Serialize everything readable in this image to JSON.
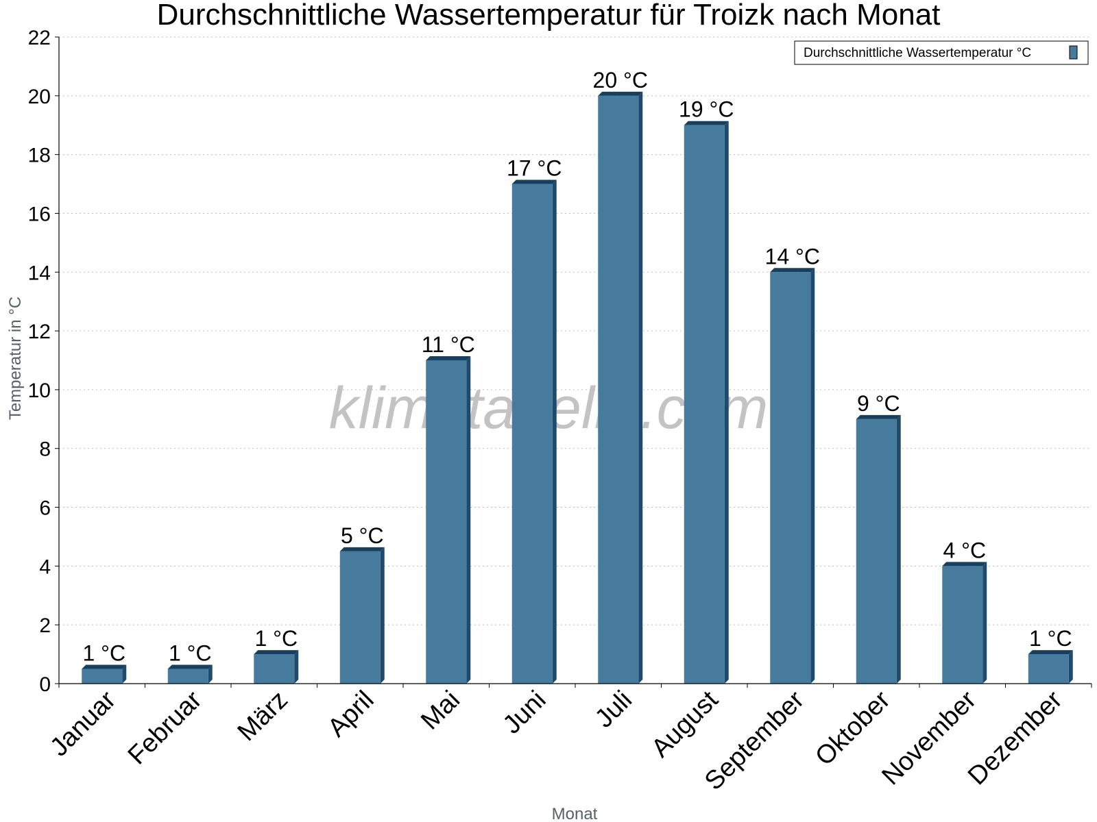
{
  "watermark": "klimatabelle.com",
  "colors": {
    "bar_front": "#467b9e",
    "bar_side": "#1e4b6c",
    "bar_top": "#16405f",
    "grid": "#bdbdbd",
    "axis": "#000000"
  },
  "chart_data": {
    "type": "bar",
    "title": "Durchschnittliche Wassertemperatur für Troizk nach Monat",
    "xlabel": "Monat",
    "ylabel": "Temperatur in °C",
    "ylim": [
      0,
      22
    ],
    "yticks": [
      0,
      2,
      4,
      6,
      8,
      10,
      12,
      14,
      16,
      18,
      20,
      22
    ],
    "grid": true,
    "legend_position": "top-right",
    "categories": [
      "Januar",
      "Februar",
      "März",
      "April",
      "Mai",
      "Juni",
      "Juli",
      "August",
      "September",
      "Oktober",
      "November",
      "Dezember"
    ],
    "series": [
      {
        "name": "Durchschnittliche Wassertemperatur °C",
        "values": [
          0.5,
          0.5,
          1,
          4.5,
          11,
          17,
          20,
          19,
          14,
          9,
          4,
          1
        ],
        "labels": [
          "1 °C",
          "1 °C",
          "1 °C",
          "5 °C",
          "11 °C",
          "17 °C",
          "20 °C",
          "19 °C",
          "14 °C",
          "9 °C",
          "4 °C",
          "1 °C"
        ]
      }
    ]
  }
}
